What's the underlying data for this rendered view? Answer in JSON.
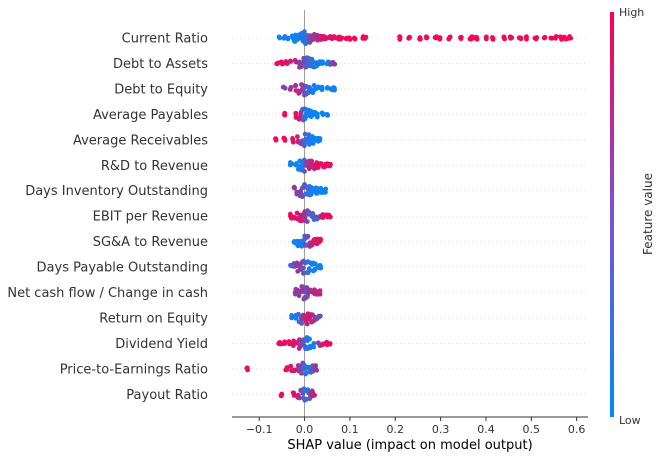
{
  "chart_data": {
    "type": "scatter",
    "subtype": "shap-beeswarm",
    "title": "",
    "xlabel": "SHAP value (impact on model output)",
    "xlim": [
      -0.16,
      0.625
    ],
    "xticks": [
      -0.1,
      0.0,
      0.1,
      0.2,
      0.3,
      0.4,
      0.5,
      0.6
    ],
    "xtick_labels": [
      "−0.1",
      "0.0",
      "0.1",
      "0.2",
      "0.3",
      "0.4",
      "0.5",
      "0.6"
    ],
    "grid": false,
    "colorbar": {
      "label": "Feature value",
      "high_label": "High",
      "low_label": "Low",
      "low_color": "#008afb",
      "high_color": "#ff0052"
    },
    "features": [
      {
        "name": "Current Ratio",
        "points": [
          [
            -0.055,
            0.05
          ],
          [
            -0.045,
            0.1
          ],
          [
            -0.035,
            0.1
          ],
          [
            -0.025,
            0.05
          ],
          [
            -0.02,
            0.0
          ],
          [
            -0.015,
            0.1
          ],
          [
            -0.012,
            0.05
          ],
          [
            -0.008,
            0.2
          ],
          [
            -0.004,
            0.1
          ],
          [
            0.0,
            0.15
          ],
          [
            0.003,
            0.15
          ],
          [
            0.006,
            0.25
          ],
          [
            0.01,
            0.4
          ],
          [
            0.014,
            0.5
          ],
          [
            0.018,
            0.55
          ],
          [
            0.022,
            0.6
          ],
          [
            0.026,
            0.65
          ],
          [
            0.03,
            0.7
          ],
          [
            0.034,
            0.75
          ],
          [
            0.038,
            0.75
          ],
          [
            0.042,
            0.8
          ],
          [
            0.046,
            0.85
          ],
          [
            0.05,
            0.85
          ],
          [
            0.055,
            0.85
          ],
          [
            0.06,
            0.9
          ],
          [
            0.065,
            0.9
          ],
          [
            0.07,
            0.9
          ],
          [
            0.075,
            0.9
          ],
          [
            0.08,
            0.9
          ],
          [
            0.09,
            0.95
          ],
          [
            0.1,
            0.95
          ],
          [
            0.11,
            0.95
          ],
          [
            0.13,
            0.95
          ],
          [
            0.135,
            0.95
          ],
          [
            0.21,
            0.95
          ],
          [
            0.23,
            0.95
          ],
          [
            0.255,
            0.95
          ],
          [
            0.27,
            0.95
          ],
          [
            0.29,
            0.95
          ],
          [
            0.3,
            0.95
          ],
          [
            0.32,
            0.95
          ],
          [
            0.345,
            0.95
          ],
          [
            0.365,
            0.95
          ],
          [
            0.37,
            0.95
          ],
          [
            0.38,
            0.95
          ],
          [
            0.4,
            0.95
          ],
          [
            0.415,
            0.95
          ],
          [
            0.44,
            0.95
          ],
          [
            0.455,
            0.95
          ],
          [
            0.475,
            0.95
          ],
          [
            0.49,
            0.95
          ],
          [
            0.51,
            0.95
          ],
          [
            0.53,
            0.95
          ],
          [
            0.545,
            0.95
          ],
          [
            0.555,
            0.95
          ],
          [
            0.565,
            0.95
          ],
          [
            0.575,
            0.95
          ],
          [
            0.585,
            0.95
          ]
        ]
      },
      {
        "name": "Debt to Assets",
        "points": [
          [
            -0.06,
            0.95
          ],
          [
            -0.05,
            0.9
          ],
          [
            -0.04,
            0.85
          ],
          [
            -0.03,
            0.8
          ],
          [
            -0.02,
            0.7
          ],
          [
            -0.012,
            0.6
          ],
          [
            -0.006,
            0.5
          ],
          [
            -0.002,
            0.45
          ],
          [
            0.002,
            0.4
          ],
          [
            0.006,
            0.3
          ],
          [
            0.01,
            0.25
          ],
          [
            0.015,
            0.2
          ],
          [
            0.02,
            0.15
          ],
          [
            0.026,
            0.1
          ],
          [
            0.032,
            0.1
          ],
          [
            0.04,
            0.05
          ],
          [
            0.05,
            0.05
          ],
          [
            0.058,
            0.3
          ],
          [
            0.065,
            0.6
          ]
        ]
      },
      {
        "name": "Debt to Equity",
        "points": [
          [
            -0.045,
            0.5
          ],
          [
            -0.03,
            0.6
          ],
          [
            -0.02,
            0.7
          ],
          [
            -0.012,
            0.7
          ],
          [
            -0.006,
            0.6
          ],
          [
            -0.002,
            0.5
          ],
          [
            0.002,
            0.4
          ],
          [
            0.006,
            0.3
          ],
          [
            0.01,
            0.2
          ],
          [
            0.015,
            0.15
          ],
          [
            0.02,
            0.1
          ],
          [
            0.026,
            0.05
          ],
          [
            0.032,
            0.05
          ],
          [
            0.04,
            0.05
          ],
          [
            0.05,
            0.05
          ],
          [
            0.06,
            0.05
          ],
          [
            0.066,
            0.1
          ]
        ]
      },
      {
        "name": "Average Payables",
        "points": [
          [
            -0.045,
            0.95
          ],
          [
            -0.02,
            0.9
          ],
          [
            -0.01,
            0.8
          ],
          [
            -0.005,
            0.5
          ],
          [
            -0.002,
            0.3
          ],
          [
            0.0,
            0.2
          ],
          [
            0.003,
            0.15
          ],
          [
            0.006,
            0.1
          ],
          [
            0.01,
            0.05
          ],
          [
            0.015,
            0.05
          ],
          [
            0.02,
            0.05
          ],
          [
            0.025,
            0.05
          ],
          [
            0.03,
            0.05
          ],
          [
            0.04,
            0.05
          ],
          [
            0.05,
            0.05
          ]
        ]
      },
      {
        "name": "Average Receivables",
        "points": [
          [
            -0.065,
            0.95
          ],
          [
            -0.045,
            0.95
          ],
          [
            -0.025,
            0.9
          ],
          [
            -0.015,
            0.8
          ],
          [
            -0.008,
            0.6
          ],
          [
            -0.003,
            0.4
          ],
          [
            0.0,
            0.3
          ],
          [
            0.004,
            0.2
          ],
          [
            0.008,
            0.15
          ],
          [
            0.012,
            0.1
          ],
          [
            0.018,
            0.1
          ],
          [
            0.024,
            0.05
          ],
          [
            0.03,
            0.05
          ],
          [
            0.035,
            0.05
          ]
        ]
      },
      {
        "name": "R&D to Revenue",
        "points": [
          [
            -0.03,
            0.05
          ],
          [
            -0.02,
            0.05
          ],
          [
            -0.012,
            0.05
          ],
          [
            -0.006,
            0.1
          ],
          [
            -0.002,
            0.2
          ],
          [
            0.002,
            0.4
          ],
          [
            0.006,
            0.55
          ],
          [
            0.01,
            0.65
          ],
          [
            0.015,
            0.75
          ],
          [
            0.02,
            0.8
          ],
          [
            0.025,
            0.85
          ],
          [
            0.03,
            0.9
          ],
          [
            0.035,
            0.9
          ],
          [
            0.04,
            0.9
          ],
          [
            0.045,
            0.9
          ],
          [
            0.05,
            0.9
          ],
          [
            0.055,
            0.9
          ]
        ]
      },
      {
        "name": "Days Inventory Outstanding",
        "points": [
          [
            -0.022,
            0.6
          ],
          [
            -0.015,
            0.5
          ],
          [
            -0.01,
            0.5
          ],
          [
            -0.005,
            0.45
          ],
          [
            -0.002,
            0.4
          ],
          [
            0.002,
            0.3
          ],
          [
            0.006,
            0.2
          ],
          [
            0.01,
            0.15
          ],
          [
            0.015,
            0.1
          ],
          [
            0.02,
            0.1
          ],
          [
            0.025,
            0.05
          ],
          [
            0.03,
            0.05
          ],
          [
            0.035,
            0.05
          ],
          [
            0.04,
            0.05
          ],
          [
            0.045,
            0.05
          ]
        ]
      },
      {
        "name": "EBIT per Revenue",
        "points": [
          [
            -0.03,
            0.95
          ],
          [
            -0.022,
            0.9
          ],
          [
            -0.016,
            0.85
          ],
          [
            -0.01,
            0.8
          ],
          [
            -0.005,
            0.8
          ],
          [
            -0.001,
            0.7
          ],
          [
            0.003,
            0.6
          ],
          [
            0.007,
            0.45
          ],
          [
            0.011,
            0.35
          ],
          [
            0.016,
            0.3
          ],
          [
            0.022,
            0.25
          ],
          [
            0.028,
            0.3
          ],
          [
            0.035,
            0.7
          ],
          [
            0.042,
            0.85
          ],
          [
            0.05,
            0.9
          ],
          [
            0.055,
            0.95
          ]
        ]
      },
      {
        "name": "SG&A to Revenue",
        "points": [
          [
            -0.022,
            0.05
          ],
          [
            -0.015,
            0.05
          ],
          [
            -0.01,
            0.1
          ],
          [
            -0.005,
            0.1
          ],
          [
            -0.001,
            0.2
          ],
          [
            0.003,
            0.35
          ],
          [
            0.007,
            0.5
          ],
          [
            0.011,
            0.65
          ],
          [
            0.016,
            0.75
          ],
          [
            0.022,
            0.8
          ],
          [
            0.028,
            0.85
          ],
          [
            0.034,
            0.9
          ]
        ]
      },
      {
        "name": "Days Payable Outstanding",
        "points": [
          [
            -0.03,
            0.2
          ],
          [
            -0.022,
            0.4
          ],
          [
            -0.015,
            0.6
          ],
          [
            -0.01,
            0.55
          ],
          [
            -0.005,
            0.5
          ],
          [
            -0.001,
            0.4
          ],
          [
            0.003,
            0.3
          ],
          [
            0.007,
            0.2
          ],
          [
            0.012,
            0.1
          ],
          [
            0.018,
            0.1
          ],
          [
            0.025,
            0.05
          ],
          [
            0.032,
            0.05
          ],
          [
            0.036,
            0.05
          ]
        ]
      },
      {
        "name": "Net cash flow / Change in cash",
        "points": [
          [
            -0.02,
            0.5
          ],
          [
            -0.013,
            0.6
          ],
          [
            -0.008,
            0.65
          ],
          [
            -0.004,
            0.55
          ],
          [
            -0.001,
            0.45
          ],
          [
            0.003,
            0.4
          ],
          [
            0.007,
            0.5
          ],
          [
            0.011,
            0.6
          ],
          [
            0.016,
            0.65
          ],
          [
            0.022,
            0.7
          ],
          [
            0.028,
            0.7
          ],
          [
            0.032,
            0.75
          ]
        ]
      },
      {
        "name": "Return on Equity",
        "points": [
          [
            -0.028,
            0.1
          ],
          [
            -0.02,
            0.1
          ],
          [
            -0.013,
            0.15
          ],
          [
            -0.007,
            0.3
          ],
          [
            -0.003,
            0.5
          ],
          [
            0.0,
            0.7
          ],
          [
            0.004,
            0.8
          ],
          [
            0.008,
            0.85
          ],
          [
            0.012,
            0.8
          ],
          [
            0.017,
            0.7
          ],
          [
            0.022,
            0.6
          ],
          [
            0.028,
            0.5
          ],
          [
            0.033,
            0.4
          ]
        ]
      },
      {
        "name": "Dividend Yield",
        "points": [
          [
            -0.055,
            0.95
          ],
          [
            -0.045,
            0.9
          ],
          [
            -0.035,
            0.9
          ],
          [
            -0.025,
            0.85
          ],
          [
            -0.017,
            0.8
          ],
          [
            -0.01,
            0.7
          ],
          [
            -0.004,
            0.5
          ],
          [
            0.0,
            0.35
          ],
          [
            0.004,
            0.2
          ],
          [
            0.008,
            0.15
          ],
          [
            0.013,
            0.1
          ],
          [
            0.02,
            0.05
          ],
          [
            0.032,
            0.5
          ],
          [
            0.04,
            0.85
          ],
          [
            0.048,
            0.95
          ],
          [
            0.055,
            0.95
          ]
        ]
      },
      {
        "name": "Price-to-Earnings Ratio",
        "points": [
          [
            -0.125,
            0.95
          ],
          [
            -0.04,
            0.9
          ],
          [
            -0.03,
            0.85
          ],
          [
            -0.022,
            0.8
          ],
          [
            -0.015,
            0.7
          ],
          [
            -0.009,
            0.55
          ],
          [
            -0.004,
            0.4
          ],
          [
            0.0,
            0.25
          ],
          [
            0.004,
            0.15
          ],
          [
            0.009,
            0.1
          ],
          [
            0.014,
            0.2
          ],
          [
            0.02,
            0.4
          ],
          [
            0.025,
            0.6
          ]
        ]
      },
      {
        "name": "Payout Ratio",
        "points": [
          [
            -0.05,
            0.95
          ],
          [
            -0.025,
            0.9
          ],
          [
            -0.016,
            0.8
          ],
          [
            -0.01,
            0.6
          ],
          [
            -0.005,
            0.4
          ],
          [
            -0.001,
            0.25
          ],
          [
            0.003,
            0.15
          ],
          [
            0.007,
            0.2
          ],
          [
            0.011,
            0.4
          ],
          [
            0.015,
            0.6
          ],
          [
            0.02,
            0.8
          ]
        ]
      }
    ]
  }
}
